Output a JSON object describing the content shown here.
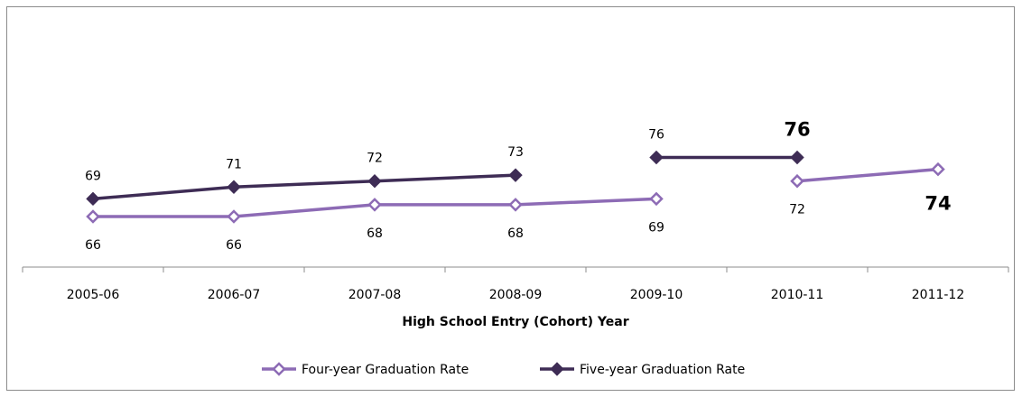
{
  "chart_data": {
    "type": "line",
    "title": "",
    "xlabel": "High School Entry (Cohort) Year",
    "ylabel": "",
    "categories": [
      "2005-06",
      "2006-07",
      "2007-08",
      "2008-09",
      "2009-10",
      "2010-11",
      "2011-12"
    ],
    "ylim": [
      55,
      85
    ],
    "grid": false,
    "legend_position": "bottom",
    "series": [
      {
        "name": "Four-year Graduation Rate",
        "values": [
          66,
          66,
          68,
          68,
          69,
          72,
          74
        ],
        "segments": [
          [
            0,
            4
          ],
          [
            5,
            6
          ]
        ],
        "label_position": "below",
        "highlight_index": 6,
        "color": "#8d6bb5",
        "marker": "hollow-diamond"
      },
      {
        "name": "Five-year Graduation Rate",
        "values": [
          69,
          71,
          72,
          73,
          76,
          76,
          null
        ],
        "segments": [
          [
            0,
            3
          ],
          [
            4,
            5
          ]
        ],
        "label_position": "above",
        "highlight_index": 5,
        "color": "#3e2c55",
        "marker": "filled-diamond"
      }
    ]
  }
}
